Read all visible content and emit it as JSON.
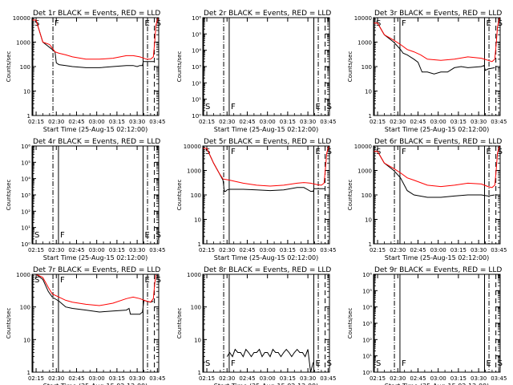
{
  "figure": {
    "xlabel": "Start Time (25-Aug-15 02:12:00)",
    "ylabel": "Counts/sec",
    "x_ticks": [
      "02:15",
      "02:30",
      "02:45",
      "03:00",
      "03:15",
      "03:30",
      "03:45"
    ],
    "colors": {
      "events": "#000000",
      "lld": "#ff0000",
      "axes": "#000000"
    }
  },
  "chart_data": [
    {
      "type": "line",
      "title": "Det 1r BLACK = Events, RED = LLD",
      "yscale": "log",
      "ylim": [
        1,
        10000
      ],
      "yticks": [
        {
          "v": 1,
          "t": "1"
        },
        {
          "v": 10,
          "t": "10"
        },
        {
          "v": 100,
          "t": "100"
        },
        {
          "v": 1000,
          "t": "1000"
        },
        {
          "v": 10000,
          "t": "10000"
        }
      ],
      "markers": [
        {
          "x": 0.6,
          "label": "S",
          "style": "solid"
        },
        {
          "x": 15.5,
          "label": "F",
          "style": "dashdot"
        },
        {
          "x": 82.4,
          "label": "E",
          "style": "solid"
        },
        {
          "x": 85.7,
          "label": "",
          "style": "dashdot"
        },
        {
          "x": 90.8,
          "label": "S",
          "style": "dashed"
        }
      ],
      "series": [
        {
          "name": "Events",
          "color": "#000000",
          "x": [
            0,
            3,
            8,
            15,
            17,
            18,
            20,
            25,
            30,
            40,
            50,
            60,
            70,
            75,
            78,
            80,
            82,
            82.5,
            90.5
          ],
          "y": [
            8000,
            8000,
            1000,
            500,
            400,
            140,
            120,
            110,
            100,
            90,
            90,
            100,
            110,
            110,
            100,
            110,
            110,
            160,
            160
          ]
        },
        {
          "name": "LLD",
          "color": "#ff0000",
          "x": [
            0,
            3,
            8,
            13,
            17,
            20,
            25,
            30,
            40,
            50,
            60,
            70,
            75,
            80,
            85,
            88,
            90,
            91,
            92,
            93.5
          ],
          "y": [
            8000,
            8000,
            1000,
            800,
            400,
            350,
            300,
            250,
            200,
            200,
            220,
            280,
            280,
            250,
            200,
            200,
            250,
            1000,
            5000,
            10000
          ]
        }
      ]
    },
    {
      "type": "line",
      "title": "Det 2r BLACK = Events, RED = LLD",
      "yscale": "log",
      "ylim": [
        1,
        1000000
      ],
      "yticks": [
        {
          "v": 1,
          "t": "10⁰"
        },
        {
          "v": 10,
          "t": "10¹"
        },
        {
          "v": 100,
          "t": "10²"
        },
        {
          "v": 1000,
          "t": "10³"
        },
        {
          "v": 10000,
          "t": "10⁴"
        },
        {
          "v": 100000,
          "t": "10⁵"
        },
        {
          "v": 1000000,
          "t": "10⁶"
        }
      ],
      "markers": [
        {
          "x": 0.6,
          "label": "S",
          "style": "solid"
        },
        {
          "x": 15.5,
          "label": "",
          "style": "dashdot"
        },
        {
          "x": 19.6,
          "label": "F",
          "style": "solid"
        },
        {
          "x": 82.4,
          "label": "E",
          "style": "solid"
        },
        {
          "x": 85.7,
          "label": "",
          "style": "dashdot"
        },
        {
          "x": 90.8,
          "label": "S",
          "style": "dashed"
        }
      ],
      "series": []
    },
    {
      "type": "line",
      "title": "Det 3r BLACK = Events, RED = LLD",
      "yscale": "log",
      "ylim": [
        1,
        10000
      ],
      "yticks": [
        {
          "v": 1,
          "t": "1"
        },
        {
          "v": 10,
          "t": "10"
        },
        {
          "v": 100,
          "t": "100"
        },
        {
          "v": 1000,
          "t": "1000"
        },
        {
          "v": 10000,
          "t": "10000"
        }
      ],
      "markers": [
        {
          "x": 0.6,
          "label": "S",
          "style": "solid"
        },
        {
          "x": 15.5,
          "label": "",
          "style": "dashdot"
        },
        {
          "x": 19.6,
          "label": "F",
          "style": "solid"
        },
        {
          "x": 82.4,
          "label": "E",
          "style": "solid"
        },
        {
          "x": 85.7,
          "label": "",
          "style": "dashdot"
        },
        {
          "x": 90.8,
          "label": "S",
          "style": "dashed"
        }
      ],
      "series": [
        {
          "name": "Events",
          "color": "#000000",
          "x": [
            0,
            3,
            8,
            15,
            20,
            22,
            25,
            30,
            33,
            36,
            40,
            45,
            50,
            55,
            60,
            65,
            70,
            80,
            82,
            83,
            85,
            90
          ],
          "y": [
            6000,
            6000,
            2000,
            1000,
            500,
            350,
            300,
            200,
            150,
            60,
            60,
            50,
            60,
            60,
            90,
            100,
            90,
            100,
            110,
            70,
            80,
            90
          ]
        },
        {
          "name": "LLD",
          "color": "#ff0000",
          "x": [
            0,
            3,
            8,
            15,
            20,
            25,
            30,
            35,
            40,
            50,
            60,
            70,
            80,
            85,
            88,
            90,
            91,
            92,
            93.5
          ],
          "y": [
            6000,
            6000,
            2000,
            1200,
            800,
            500,
            400,
            300,
            200,
            180,
            200,
            250,
            220,
            180,
            160,
            200,
            800,
            4000,
            10000
          ]
        }
      ]
    },
    {
      "type": "line",
      "title": "Det 4r BLACK = Events, RED = LLD",
      "yscale": "log",
      "ylim": [
        1,
        1000000
      ],
      "yticks": [
        {
          "v": 1,
          "t": "10⁰"
        },
        {
          "v": 10,
          "t": "10¹"
        },
        {
          "v": 100,
          "t": "10²"
        },
        {
          "v": 1000,
          "t": "10³"
        },
        {
          "v": 10000,
          "t": "10⁴"
        },
        {
          "v": 100000,
          "t": "10⁵"
        },
        {
          "v": 1000000,
          "t": "10⁶"
        }
      ],
      "markers": [
        {
          "x": 0.6,
          "label": "S",
          "style": "solid"
        },
        {
          "x": 15.5,
          "label": "",
          "style": "dashdot"
        },
        {
          "x": 19.6,
          "label": "F",
          "style": "solid"
        },
        {
          "x": 82.4,
          "label": "E",
          "style": "solid"
        },
        {
          "x": 85.7,
          "label": "",
          "style": "dashdot"
        },
        {
          "x": 90.8,
          "label": "S",
          "style": "dashed"
        }
      ],
      "series": []
    },
    {
      "type": "line",
      "title": "Det 5r BLACK = Events, RED = LLD",
      "yscale": "log",
      "ylim": [
        1,
        10000
      ],
      "yticks": [
        {
          "v": 1,
          "t": "1"
        },
        {
          "v": 10,
          "t": "10"
        },
        {
          "v": 100,
          "t": "100"
        },
        {
          "v": 1000,
          "t": "1000"
        },
        {
          "v": 10000,
          "t": "10000"
        }
      ],
      "markers": [
        {
          "x": 0.6,
          "label": "S",
          "style": "solid"
        },
        {
          "x": 15.5,
          "label": "",
          "style": "dashdot"
        },
        {
          "x": 19.6,
          "label": "F",
          "style": "solid"
        },
        {
          "x": 82.4,
          "label": "E",
          "style": "solid"
        },
        {
          "x": 85.7,
          "label": "",
          "style": "dashdot"
        },
        {
          "x": 90.8,
          "label": "S",
          "style": "dashed"
        }
      ],
      "series": [
        {
          "name": "Events",
          "color": "#000000",
          "x": [
            0,
            3,
            8,
            12,
            15,
            16,
            17,
            18,
            20,
            30,
            40,
            50,
            60,
            70,
            75,
            80,
            82,
            82.5,
            90.5
          ],
          "y": [
            8000,
            8000,
            2000,
            800,
            400,
            140,
            140,
            160,
            170,
            170,
            160,
            150,
            160,
            200,
            200,
            140,
            140,
            180,
            180
          ]
        },
        {
          "name": "LLD",
          "color": "#ff0000",
          "x": [
            0,
            3,
            8,
            12,
            15,
            20,
            30,
            40,
            50,
            60,
            70,
            75,
            80,
            85,
            88,
            90,
            91,
            92,
            93.5
          ],
          "y": [
            8000,
            8000,
            2000,
            800,
            450,
            400,
            300,
            250,
            230,
            250,
            300,
            320,
            300,
            260,
            250,
            300,
            1200,
            5000,
            10000
          ]
        }
      ]
    },
    {
      "type": "line",
      "title": "Det 6r BLACK = Events, RED = LLD",
      "yscale": "log",
      "ylim": [
        1,
        10000
      ],
      "yticks": [
        {
          "v": 1,
          "t": "1"
        },
        {
          "v": 10,
          "t": "10"
        },
        {
          "v": 100,
          "t": "100"
        },
        {
          "v": 1000,
          "t": "1000"
        },
        {
          "v": 10000,
          "t": "10000"
        }
      ],
      "markers": [
        {
          "x": 0.6,
          "label": "S",
          "style": "solid"
        },
        {
          "x": 15.5,
          "label": "",
          "style": "dashdot"
        },
        {
          "x": 19.6,
          "label": "F",
          "style": "solid"
        },
        {
          "x": 82.4,
          "label": "E",
          "style": "solid"
        },
        {
          "x": 85.7,
          "label": "",
          "style": "dashdot"
        },
        {
          "x": 90.8,
          "label": "S",
          "style": "dashed"
        }
      ],
      "series": [
        {
          "name": "Events",
          "color": "#000000",
          "x": [
            0,
            3,
            8,
            15,
            20,
            25,
            30,
            40,
            50,
            60,
            70,
            80,
            85,
            90
          ],
          "y": [
            6000,
            6000,
            2000,
            1000,
            500,
            150,
            100,
            80,
            80,
            90,
            100,
            100,
            90,
            100
          ]
        },
        {
          "name": "LLD",
          "color": "#ff0000",
          "x": [
            0,
            3,
            8,
            15,
            20,
            25,
            30,
            40,
            50,
            60,
            70,
            80,
            85,
            88,
            90,
            91,
            92,
            93.5
          ],
          "y": [
            6000,
            6000,
            2000,
            1200,
            800,
            500,
            400,
            250,
            220,
            250,
            300,
            280,
            220,
            200,
            250,
            1000,
            5000,
            10000
          ]
        }
      ]
    },
    {
      "type": "line",
      "title": "Det 7r BLACK = Events, RED = LLD",
      "yscale": "log",
      "ylim": [
        1,
        1000
      ],
      "yticks": [
        {
          "v": 1,
          "t": "1"
        },
        {
          "v": 10,
          "t": "10"
        },
        {
          "v": 100,
          "t": "100"
        },
        {
          "v": 1000,
          "t": "1000"
        }
      ],
      "markers": [
        {
          "x": 0.6,
          "label": "S",
          "style": "solid"
        },
        {
          "x": 15.5,
          "label": "",
          "style": "dashdot"
        },
        {
          "x": 19.6,
          "label": "F",
          "style": "solid"
        },
        {
          "x": 82.4,
          "label": "E",
          "style": "solid"
        },
        {
          "x": 85.7,
          "label": "",
          "style": "dashdot"
        },
        {
          "x": 90.8,
          "label": "S",
          "style": "dashed"
        }
      ],
      "series": [
        {
          "name": "Events",
          "color": "#000000",
          "x": [
            0,
            3,
            8,
            12,
            15,
            20,
            25,
            30,
            40,
            50,
            60,
            70,
            72,
            73,
            78,
            80,
            82,
            83,
            85,
            88,
            90
          ],
          "y": [
            1000,
            1000,
            700,
            300,
            200,
            150,
            100,
            90,
            80,
            70,
            75,
            80,
            90,
            60,
            60,
            60,
            70,
            160,
            150,
            140,
            150
          ]
        },
        {
          "name": "LLD",
          "color": "#ff0000",
          "x": [
            0,
            3,
            8,
            12,
            15,
            20,
            25,
            30,
            40,
            50,
            60,
            70,
            75,
            80,
            85,
            88,
            90,
            91,
            92,
            93.5
          ],
          "y": [
            1000,
            1000,
            800,
            400,
            250,
            200,
            160,
            140,
            120,
            110,
            130,
            180,
            200,
            180,
            150,
            140,
            180,
            500,
            1000,
            1000
          ]
        }
      ]
    },
    {
      "type": "line",
      "title": "Det 8r BLACK = Events, RED = LLD",
      "yscale": "log",
      "ylim": [
        1,
        1000
      ],
      "yticks": [
        {
          "v": 1,
          "t": "1"
        },
        {
          "v": 10,
          "t": "10"
        },
        {
          "v": 100,
          "t": "100"
        },
        {
          "v": 1000,
          "t": "1000"
        }
      ],
      "markers": [
        {
          "x": 0.6,
          "label": "S",
          "style": "solid"
        },
        {
          "x": 15.5,
          "label": "",
          "style": "dashdot"
        },
        {
          "x": 19.6,
          "label": "F",
          "style": "solid"
        },
        {
          "x": 82.4,
          "label": "E",
          "style": "solid"
        },
        {
          "x": 85.7,
          "label": "",
          "style": "dashdot"
        },
        {
          "x": 90.8,
          "label": "S",
          "style": "dashed"
        }
      ],
      "series": [
        {
          "name": "Events",
          "color": "#000000",
          "x": [
            18,
            20,
            22,
            24,
            26,
            28,
            30,
            32,
            34,
            36,
            38,
            40,
            42,
            44,
            46,
            48,
            50,
            52,
            54,
            56,
            58,
            60,
            62,
            64,
            66,
            68,
            70,
            72,
            74,
            76,
            78,
            80,
            82
          ],
          "y": [
            3,
            4,
            3,
            5,
            4,
            4,
            3,
            5,
            4,
            3,
            4,
            4,
            5,
            3,
            4,
            4,
            3,
            5,
            4,
            4,
            3,
            4,
            5,
            4,
            3,
            4,
            5,
            4,
            4,
            3,
            5,
            1,
            2
          ]
        }
      ]
    },
    {
      "type": "line",
      "title": "Det 9r BLACK = Events, RED = LLD",
      "yscale": "log",
      "ylim": [
        1,
        1000000
      ],
      "yticks": [
        {
          "v": 1,
          "t": "10⁰"
        },
        {
          "v": 10,
          "t": "10¹"
        },
        {
          "v": 100,
          "t": "10²"
        },
        {
          "v": 1000,
          "t": "10³"
        },
        {
          "v": 10000,
          "t": "10⁴"
        },
        {
          "v": 100000,
          "t": "10⁵"
        },
        {
          "v": 1000000,
          "t": "10⁶"
        }
      ],
      "markers": [
        {
          "x": 0.6,
          "label": "S",
          "style": "solid"
        },
        {
          "x": 15.5,
          "label": "",
          "style": "dashdot"
        },
        {
          "x": 19.6,
          "label": "F",
          "style": "solid"
        },
        {
          "x": 82.4,
          "label": "E",
          "style": "solid"
        },
        {
          "x": 85.7,
          "label": "",
          "style": "dashdot"
        },
        {
          "x": 90.8,
          "label": "S",
          "style": "dashed"
        }
      ],
      "series": []
    }
  ]
}
